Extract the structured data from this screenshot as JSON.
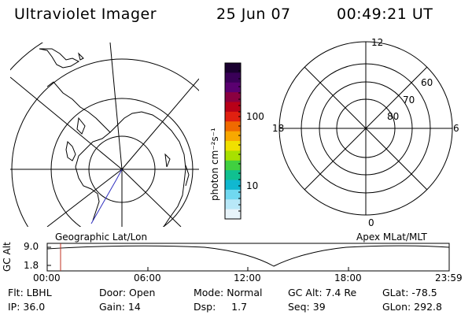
{
  "header": {
    "instrument": "Ultraviolet Imager",
    "date": "25 Jun 07",
    "time": "00:49:21 UT"
  },
  "left_map": {
    "caption": "Geographic Lat/Lon"
  },
  "right_map": {
    "caption": "Apex MLat/MLT",
    "mlt_labels": [
      "12",
      "18",
      "6",
      "0"
    ],
    "lat_labels": [
      "60",
      "70",
      "80"
    ]
  },
  "colorbar": {
    "unit_label": "photon cm⁻²s⁻¹",
    "tick_labels": [
      "100",
      "10"
    ],
    "scale": "log",
    "colors_top_to_bottom": [
      "#1a0030",
      "#3a0058",
      "#5a0070",
      "#8a0040",
      "#b80018",
      "#e02010",
      "#f06a00",
      "#f8a800",
      "#f0e000",
      "#a8e000",
      "#40d040",
      "#10c090",
      "#10b8d0",
      "#70d8f0",
      "#b8e8f8",
      "#e8f4fa"
    ]
  },
  "altitude_panel": {
    "ylabel": "GC Alt",
    "y_ticks": [
      "9.0",
      "1.8"
    ],
    "x_ticks": [
      "00:00",
      "06:00",
      "12:00",
      "18:00",
      "23:59"
    ],
    "current_time_marker_color": "#c03020"
  },
  "status": {
    "row1": [
      {
        "label": "Flt: LBHL"
      },
      {
        "label": "Door: Open"
      },
      {
        "label": "Mode: Normal"
      },
      {
        "label": "GC Alt: 7.4 Re"
      },
      {
        "label": "GLat: -78.5"
      }
    ],
    "row2": [
      {
        "label": "IP: 36.0"
      },
      {
        "label": "Gain: 14"
      },
      {
        "label": "Dsp:     1.7"
      },
      {
        "label": "Seq: 39"
      },
      {
        "label": "GLon: 292.8"
      }
    ]
  }
}
